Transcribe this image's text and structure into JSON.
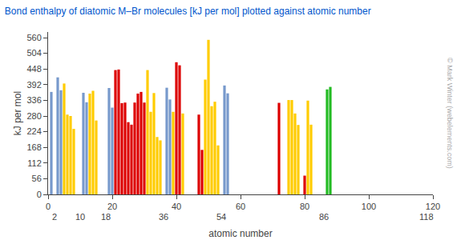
{
  "chart_data": {
    "type": "bar",
    "title": "Bond enthalpy of diatomic M–Br molecules [kJ per mol] plotted against atomic number",
    "ylabel": "kJ per mol",
    "xlabel": "atomic number",
    "x": [
      1,
      3,
      4,
      5,
      6,
      7,
      8,
      11,
      12,
      13,
      14,
      15,
      19,
      20,
      21,
      22,
      23,
      24,
      25,
      26,
      27,
      28,
      29,
      30,
      31,
      32,
      33,
      34,
      35,
      37,
      38,
      39,
      40,
      41,
      42,
      47,
      48,
      49,
      50,
      51,
      52,
      53,
      55,
      56,
      72,
      75,
      76,
      77,
      78,
      80,
      81,
      82,
      87,
      88
    ],
    "values": [
      366,
      418,
      372,
      396,
      285,
      280,
      234,
      363,
      329,
      360,
      370,
      264,
      380,
      310,
      444,
      446,
      326,
      328,
      258,
      249,
      328,
      360,
      366,
      328,
      444,
      295,
      362,
      205,
      193,
      381,
      339,
      295,
      472,
      461,
      289,
      285,
      159,
      410,
      552,
      315,
      331,
      175,
      389,
      361,
      327,
      337,
      337,
      289,
      248,
      67,
      335,
      249,
      375,
      384
    ],
    "colors": [
      "#7799cc",
      "#7799cc",
      "#7799cc",
      "#ffcc00",
      "#ffcc00",
      "#ffcc00",
      "#ffcc00",
      "#7799cc",
      "#7799cc",
      "#ffcc00",
      "#ffcc00",
      "#ffcc00",
      "#7799cc",
      "#7799cc",
      "#dd0000",
      "#dd0000",
      "#dd0000",
      "#dd0000",
      "#dd0000",
      "#dd0000",
      "#dd0000",
      "#dd0000",
      "#dd0000",
      "#dd0000",
      "#ffcc00",
      "#ffcc00",
      "#ffcc00",
      "#ffcc00",
      "#ffcc00",
      "#7799cc",
      "#7799cc",
      "#ffcc00",
      "#dd0000",
      "#dd0000",
      "#ffcc00",
      "#dd0000",
      "#dd0000",
      "#ffcc00",
      "#ffcc00",
      "#ffcc00",
      "#ffcc00",
      "#ffcc00",
      "#7799cc",
      "#7799cc",
      "#dd0000",
      "#ffcc00",
      "#ffcc00",
      "#ffcc00",
      "#ffcc00",
      "#dd0000",
      "#ffcc00",
      "#ffcc00",
      "#22bb22",
      "#22bb22"
    ],
    "xlim": [
      0,
      120
    ],
    "xticks": [
      0,
      20,
      40,
      60,
      80,
      100,
      120
    ],
    "ylim": [
      0,
      580
    ],
    "yticks": [
      0,
      56,
      112,
      168,
      224,
      280,
      336,
      392,
      448,
      504,
      560
    ],
    "grid": false,
    "annotations": [
      {
        "text": "2",
        "x": 2
      },
      {
        "text": "10",
        "x": 10
      },
      {
        "text": "18",
        "x": 18
      },
      {
        "text": "36",
        "x": 36
      },
      {
        "text": "54",
        "x": 54
      },
      {
        "text": "86",
        "x": 86
      },
      {
        "text": "118",
        "x": 118
      },
      {
        "text": "© Mark Winter (webelements.com)"
      }
    ]
  }
}
